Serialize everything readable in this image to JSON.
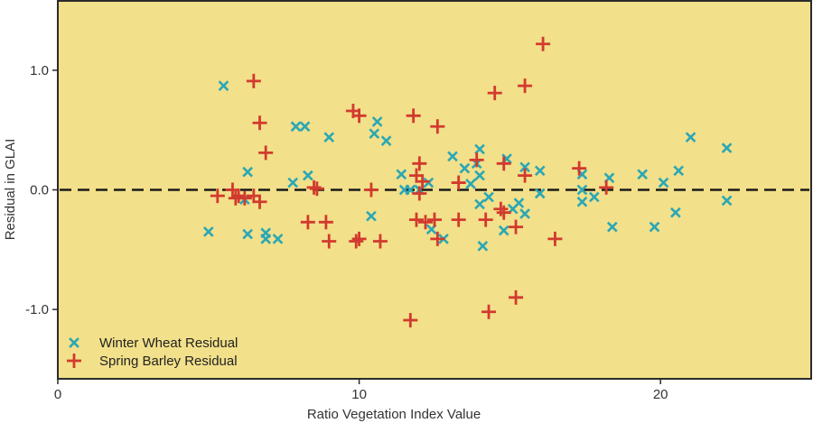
{
  "chart_data": {
    "type": "scatter",
    "title": "",
    "xlabel": "Ratio Vegetation Index Value",
    "ylabel": "Residual in GLAI",
    "xlim": [
      0,
      25
    ],
    "ylim": [
      -1.58,
      1.58
    ],
    "xticks": [
      0,
      10,
      20
    ],
    "xtick_labels": [
      "0",
      "10",
      "20"
    ],
    "yticks": [
      1.0,
      0.0,
      -1.0
    ],
    "ytick_labels": [
      "1.0",
      "0.0",
      "-1.0"
    ],
    "reference_line": {
      "y": 0.0,
      "style": "dashed"
    },
    "legend": {
      "position": "bottom-left"
    },
    "grid": false,
    "background_color": "#f2e08a",
    "series": [
      {
        "name": "Winter Wheat Residual",
        "marker": "x",
        "color": "#2aa7b5",
        "points": [
          [
            5.5,
            0.87
          ],
          [
            5.0,
            -0.35
          ],
          [
            6.2,
            -0.08
          ],
          [
            6.3,
            0.15
          ],
          [
            6.3,
            -0.37
          ],
          [
            6.9,
            -0.36
          ],
          [
            6.9,
            -0.41
          ],
          [
            7.3,
            -0.41
          ],
          [
            7.8,
            0.06
          ],
          [
            7.9,
            0.53
          ],
          [
            8.2,
            0.53
          ],
          [
            8.3,
            0.12
          ],
          [
            9.0,
            0.44
          ],
          [
            10.4,
            -0.22
          ],
          [
            10.5,
            0.47
          ],
          [
            10.6,
            0.57
          ],
          [
            10.9,
            0.41
          ],
          [
            11.4,
            0.13
          ],
          [
            11.5,
            0.0
          ],
          [
            11.7,
            0.0
          ],
          [
            12.0,
            0.0
          ],
          [
            12.3,
            0.06
          ],
          [
            12.4,
            -0.33
          ],
          [
            12.8,
            -0.41
          ],
          [
            13.1,
            0.28
          ],
          [
            13.5,
            0.18
          ],
          [
            13.7,
            0.05
          ],
          [
            13.9,
            0.22
          ],
          [
            14.0,
            0.34
          ],
          [
            14.0,
            0.12
          ],
          [
            14.0,
            -0.12
          ],
          [
            14.1,
            -0.47
          ],
          [
            14.3,
            -0.06
          ],
          [
            14.8,
            -0.34
          ],
          [
            14.9,
            0.26
          ],
          [
            15.1,
            -0.16
          ],
          [
            15.3,
            -0.11
          ],
          [
            15.5,
            -0.2
          ],
          [
            15.5,
            0.19
          ],
          [
            16.0,
            0.16
          ],
          [
            16.0,
            -0.03
          ],
          [
            17.4,
            0.13
          ],
          [
            17.4,
            0.0
          ],
          [
            17.4,
            -0.1
          ],
          [
            17.8,
            -0.06
          ],
          [
            18.3,
            0.1
          ],
          [
            18.4,
            -0.31
          ],
          [
            19.4,
            0.13
          ],
          [
            19.8,
            -0.31
          ],
          [
            20.1,
            0.06
          ],
          [
            20.5,
            -0.19
          ],
          [
            20.6,
            0.16
          ],
          [
            21.0,
            0.44
          ],
          [
            22.2,
            0.35
          ],
          [
            22.2,
            -0.09
          ]
        ]
      },
      {
        "name": "Spring Barley Residual",
        "marker": "+",
        "color": "#d23a2e",
        "points": [
          [
            5.3,
            -0.05
          ],
          [
            5.8,
            0.0
          ],
          [
            5.9,
            -0.07
          ],
          [
            6.0,
            -0.05
          ],
          [
            6.2,
            -0.07
          ],
          [
            6.5,
            0.91
          ],
          [
            6.5,
            -0.05
          ],
          [
            6.7,
            -0.1
          ],
          [
            6.7,
            0.56
          ],
          [
            6.9,
            0.31
          ],
          [
            8.3,
            -0.27
          ],
          [
            8.5,
            0.02
          ],
          [
            8.6,
            0.01
          ],
          [
            8.9,
            -0.27
          ],
          [
            9.0,
            -0.43
          ],
          [
            9.8,
            0.66
          ],
          [
            9.9,
            -0.43
          ],
          [
            10.0,
            0.62
          ],
          [
            10.0,
            -0.41
          ],
          [
            10.4,
            0.0
          ],
          [
            10.7,
            -0.43
          ],
          [
            11.7,
            -1.09
          ],
          [
            11.8,
            0.62
          ],
          [
            11.9,
            0.12
          ],
          [
            11.9,
            -0.25
          ],
          [
            12.0,
            0.22
          ],
          [
            12.0,
            -0.03
          ],
          [
            12.1,
            0.07
          ],
          [
            12.2,
            -0.27
          ],
          [
            12.5,
            -0.25
          ],
          [
            12.6,
            0.53
          ],
          [
            12.6,
            -0.41
          ],
          [
            13.3,
            -0.25
          ],
          [
            13.3,
            0.06
          ],
          [
            13.9,
            0.25
          ],
          [
            14.2,
            -0.25
          ],
          [
            14.3,
            -1.02
          ],
          [
            14.5,
            0.81
          ],
          [
            14.7,
            -0.16
          ],
          [
            14.8,
            -0.19
          ],
          [
            14.8,
            0.22
          ],
          [
            15.2,
            -0.31
          ],
          [
            15.2,
            -0.9
          ],
          [
            15.5,
            0.87
          ],
          [
            15.5,
            0.12
          ],
          [
            16.1,
            1.22
          ],
          [
            16.5,
            -0.41
          ],
          [
            17.3,
            0.18
          ],
          [
            18.2,
            0.02
          ]
        ]
      }
    ]
  }
}
